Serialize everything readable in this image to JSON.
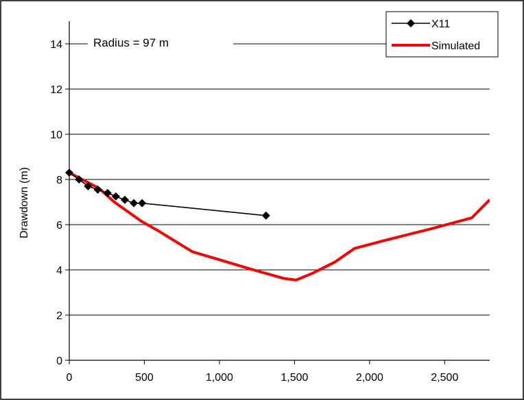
{
  "chart_data": {
    "type": "line",
    "title": "",
    "xlabel": "",
    "ylabel": "Drawdown (m)",
    "xlim": [
      0,
      2800
    ],
    "ylim": [
      0,
      15
    ],
    "x_ticks": [
      0,
      500,
      1000,
      1500,
      2000,
      2500
    ],
    "x_tick_labels": [
      "0",
      "500",
      "1,000",
      "1,500",
      "2,000",
      "2,500"
    ],
    "y_ticks": [
      0,
      2,
      4,
      6,
      8,
      10,
      12,
      14
    ],
    "y_tick_labels": [
      "0",
      "2",
      "4",
      "6",
      "8",
      "10",
      "12",
      "14"
    ],
    "grid": "horizontal",
    "legend_position": "top-right",
    "annotation": "Radius = 97 m",
    "series": [
      {
        "name": "X11",
        "style": "line-with-diamond-markers",
        "color": "#000000",
        "x": [
          0,
          65,
          125,
          190,
          255,
          310,
          370,
          430,
          485,
          1310
        ],
        "y": [
          8.3,
          8.0,
          7.7,
          7.55,
          7.4,
          7.25,
          7.1,
          6.95,
          6.95,
          6.4
        ]
      },
      {
        "name": "Simulated",
        "style": "thick-line",
        "color": "#ff0000",
        "x": [
          0,
          200,
          300,
          480,
          600,
          820,
          1000,
          1200,
          1430,
          1510,
          1620,
          1770,
          1900,
          2100,
          2400,
          2680,
          2800
        ],
        "y": [
          8.3,
          7.6,
          7.0,
          6.15,
          5.7,
          4.8,
          4.45,
          4.05,
          3.62,
          3.55,
          3.85,
          4.35,
          4.95,
          5.3,
          5.8,
          6.3,
          7.1
        ]
      }
    ]
  }
}
